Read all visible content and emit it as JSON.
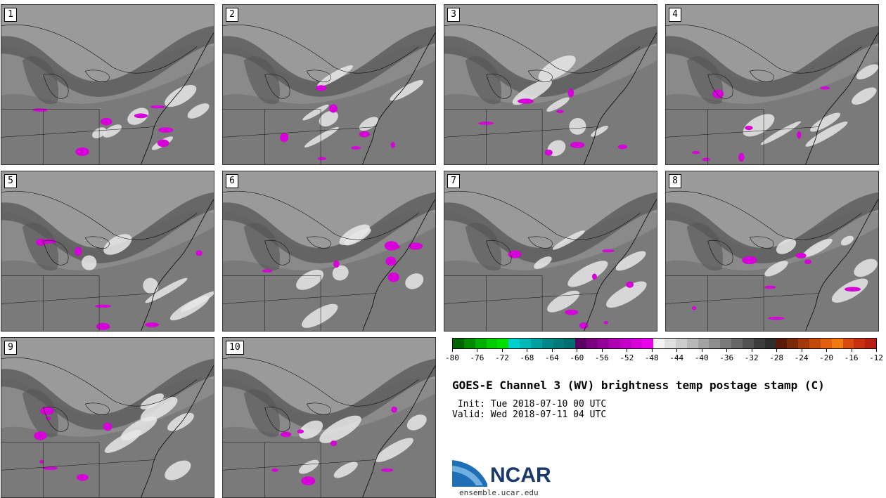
{
  "panels": [
    {
      "label": "1"
    },
    {
      "label": "2"
    },
    {
      "label": "3"
    },
    {
      "label": "4"
    },
    {
      "label": "5"
    },
    {
      "label": "6"
    },
    {
      "label": "7"
    },
    {
      "label": "8"
    },
    {
      "label": "9"
    },
    {
      "label": "10"
    }
  ],
  "colorbar": {
    "ticks": [
      "-80",
      "-76",
      "-72",
      "-68",
      "-64",
      "-60",
      "-56",
      "-52",
      "-48",
      "-44",
      "-40",
      "-36",
      "-32",
      "-28",
      "-24",
      "-20",
      "-16",
      "-12"
    ],
    "colors": [
      "#006400",
      "#008a00",
      "#00b000",
      "#00cc00",
      "#00e000",
      "#00cfcf",
      "#00b8b8",
      "#00a0a0",
      "#008888",
      "#007a7a",
      "#006e6e",
      "#5a0063",
      "#7a007f",
      "#930098",
      "#ad00b2",
      "#c400c8",
      "#d800da",
      "#ea00ea",
      "#f2f2f2",
      "#e0e0e0",
      "#cccccc",
      "#b8b8b8",
      "#a3a3a3",
      "#8f8f8f",
      "#7a7a7a",
      "#666666",
      "#525252",
      "#3d3d3d",
      "#2e2e2e",
      "#5a1a0a",
      "#7a2a0a",
      "#a3390a",
      "#c44a0a",
      "#e06010",
      "#f07a10",
      "#d84a10",
      "#c83010",
      "#b82010"
    ]
  },
  "title": "GOES-E Channel 3 (WV) brightness temp postage stamp (C)",
  "init": " Init: Tue 2018-07-10 00 UTC",
  "valid": "Valid: Wed 2018-07-11 04 UTC",
  "logo_text": "NCAR",
  "site": "ensemble.ucar.edu"
}
